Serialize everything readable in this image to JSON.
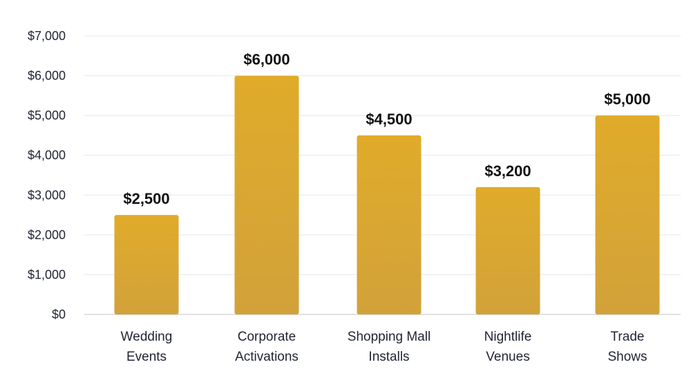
{
  "chart_data": {
    "type": "bar",
    "title": "",
    "xlabel": "",
    "ylabel": "",
    "categories": [
      [
        "Wedding",
        "Events"
      ],
      [
        "Corporate",
        "Activations"
      ],
      [
        "Shopping Mall",
        "Installs"
      ],
      [
        "Nightlife",
        "Venues"
      ],
      [
        "Trade",
        "Shows"
      ]
    ],
    "values": [
      2500,
      6000,
      4500,
      3200,
      5000
    ],
    "data_labels": [
      "$2,500",
      "$6,000",
      "$4,500",
      "$3,200",
      "$5,000"
    ],
    "ylim": [
      0,
      7000
    ],
    "yticks": [
      0,
      1000,
      2000,
      3000,
      4000,
      5000,
      6000,
      7000
    ],
    "ytick_labels": [
      "$0",
      "$1,000",
      "$2,000",
      "$3,000",
      "$4,000",
      "$5,000",
      "$6,000",
      "$7,000"
    ],
    "grid": true,
    "legend": "none",
    "colors": {
      "bar_top": "#e0ab2a",
      "bar_bottom": "#d2a23a"
    }
  }
}
